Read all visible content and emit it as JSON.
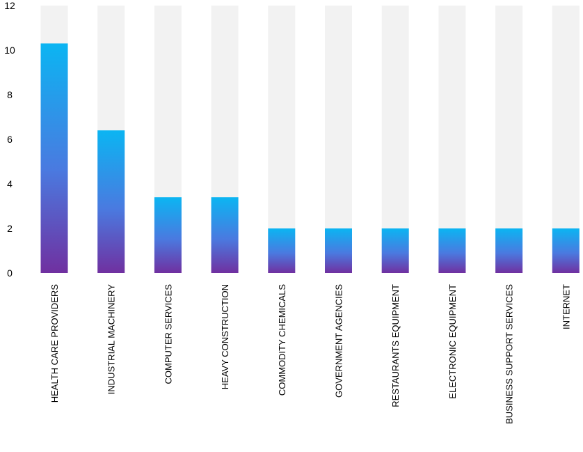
{
  "chart_data": {
    "type": "bar",
    "categories": [
      "HEALTH CARE PROVIDERS",
      "INDUSTRIAL MACHINERY",
      "COMPUTER SERVICES",
      "HEAVY CONSTRUCTION",
      "COMMODITY CHEMICALS",
      "GOVERNMENT AGENCIES",
      "RESTAURANTS EQUIPMENT",
      "ELECTRONIC EQUIPMENT",
      "BUSINESS SUPPORT SERVICES",
      "INTERNET"
    ],
    "values": [
      10.3,
      6.4,
      3.4,
      3.4,
      2.0,
      2.0,
      2.0,
      2.0,
      2.0,
      2.0
    ],
    "ylim": [
      0,
      12
    ],
    "yticks": [
      "0",
      "2",
      "4",
      "6",
      "8",
      "10",
      "12"
    ],
    "ytick_values": [
      0,
      2,
      4,
      6,
      8,
      10,
      12
    ],
    "background_bar_value": 12,
    "grid": false,
    "colors": {
      "bar_top": "#0bb5f2",
      "bar_bottom": "#7030a0",
      "background_bar": "#f2f2f2",
      "text": "#000000"
    }
  }
}
